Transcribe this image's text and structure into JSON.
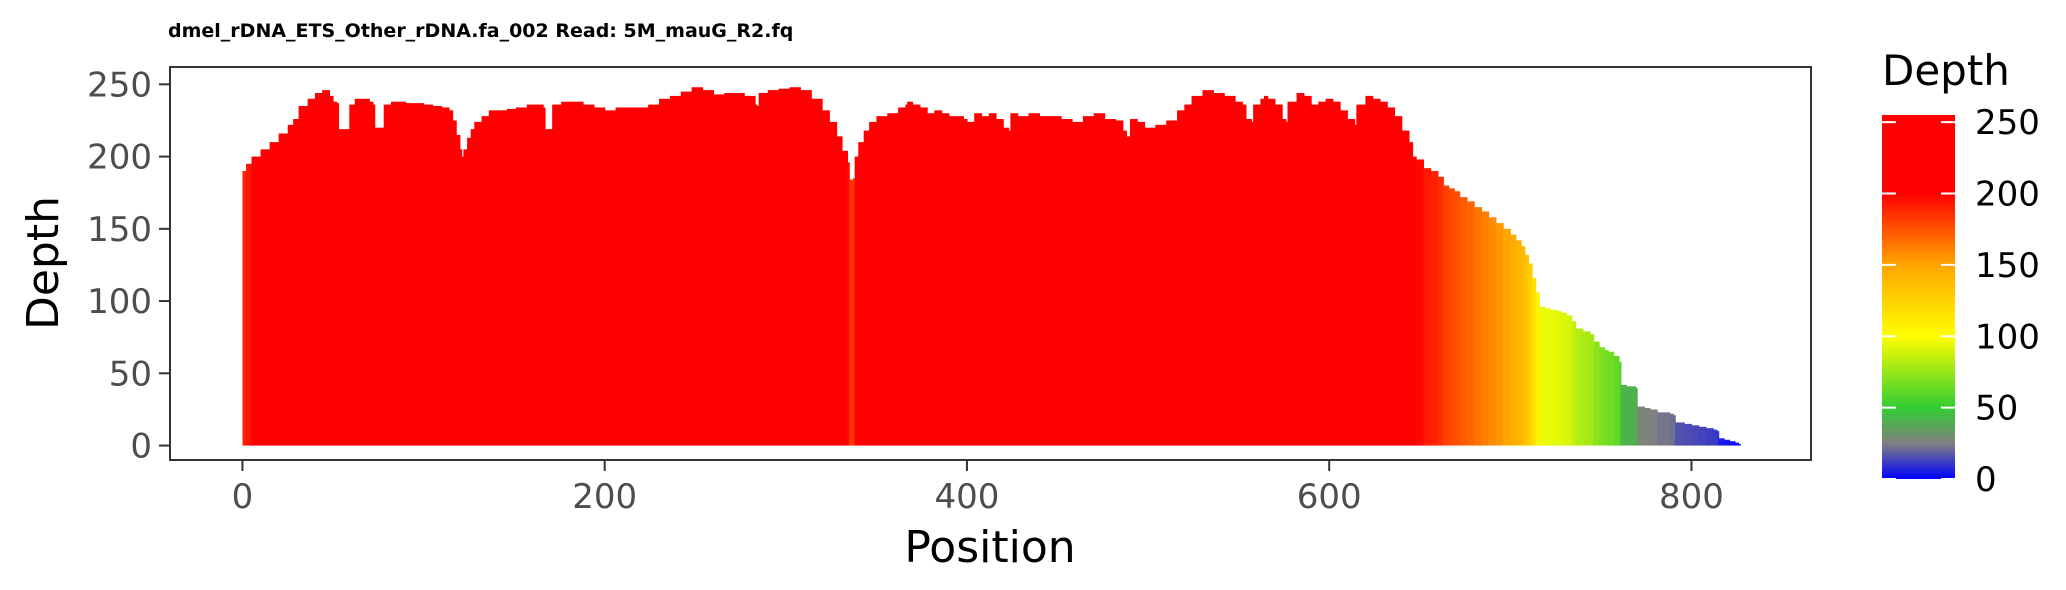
{
  "chart_data": {
    "type": "area",
    "title": "dmel_rDNA_ETS_Other_rDNA.fa_002 Read: 5M_mauG_R2.fq",
    "xlabel": "Position",
    "ylabel": "Depth",
    "xlim": [
      -40,
      866
    ],
    "ylim": [
      -10,
      262
    ],
    "x_ticks": [
      0,
      200,
      400,
      600,
      800
    ],
    "y_ticks": [
      0,
      50,
      100,
      150,
      200,
      250
    ],
    "grid": false,
    "legend": {
      "title": "Depth",
      "placement": "right",
      "type": "colorbar",
      "ticks": [
        0,
        50,
        100,
        150,
        200,
        250
      ],
      "range": [
        0,
        255
      ],
      "color_stops": [
        {
          "value": 0,
          "color": "#0000ff"
        },
        {
          "value": 25,
          "color": "#808080"
        },
        {
          "value": 50,
          "color": "#32cd32"
        },
        {
          "value": 100,
          "color": "#ffff00"
        },
        {
          "value": 150,
          "color": "#ffa500"
        },
        {
          "value": 200,
          "color": "#ff0000"
        },
        {
          "value": 255,
          "color": "#ff0000"
        }
      ]
    },
    "series": [
      {
        "points": [
          [
            0,
            190
          ],
          [
            2,
            195
          ],
          [
            5,
            200
          ],
          [
            10,
            205
          ],
          [
            15,
            210
          ],
          [
            20,
            216
          ],
          [
            25,
            222
          ],
          [
            28,
            226
          ],
          [
            30,
            226
          ],
          [
            31,
            235
          ],
          [
            35,
            235
          ],
          [
            36,
            240
          ],
          [
            40,
            244
          ],
          [
            44,
            246
          ],
          [
            48,
            242
          ],
          [
            50,
            238
          ],
          [
            52,
            237
          ],
          [
            53,
            219
          ],
          [
            58,
            219
          ],
          [
            59,
            236
          ],
          [
            62,
            240
          ],
          [
            66,
            240
          ],
          [
            70,
            238
          ],
          [
            72,
            236
          ],
          [
            73,
            220
          ],
          [
            77,
            220
          ],
          [
            78,
            236
          ],
          [
            82,
            238
          ],
          [
            86,
            238
          ],
          [
            90,
            237
          ],
          [
            95,
            237
          ],
          [
            100,
            236
          ],
          [
            105,
            235
          ],
          [
            110,
            234
          ],
          [
            114,
            232
          ],
          [
            116,
            225
          ],
          [
            118,
            215
          ],
          [
            120,
            205
          ],
          [
            121,
            200
          ],
          [
            122,
            205
          ],
          [
            124,
            213
          ],
          [
            126,
            219
          ],
          [
            128,
            224
          ],
          [
            132,
            228
          ],
          [
            136,
            232
          ],
          [
            141,
            232
          ],
          [
            146,
            233
          ],
          [
            151,
            234
          ],
          [
            157,
            236
          ],
          [
            162,
            236
          ],
          [
            166,
            234
          ],
          [
            167,
            219
          ],
          [
            170,
            219
          ],
          [
            171,
            236
          ],
          [
            176,
            238
          ],
          [
            182,
            238
          ],
          [
            188,
            236
          ],
          [
            194,
            234
          ],
          [
            200,
            232
          ],
          [
            206,
            234
          ],
          [
            212,
            234
          ],
          [
            218,
            234
          ],
          [
            224,
            236
          ],
          [
            230,
            240
          ],
          [
            236,
            242
          ],
          [
            242,
            245
          ],
          [
            248,
            248
          ],
          [
            254,
            246
          ],
          [
            260,
            243
          ],
          [
            266,
            244
          ],
          [
            272,
            244
          ],
          [
            277,
            242
          ],
          [
            283,
            236
          ],
          [
            284,
            235
          ],
          [
            285,
            244
          ],
          [
            290,
            246
          ],
          [
            296,
            247
          ],
          [
            302,
            248
          ],
          [
            308,
            246
          ],
          [
            314,
            240
          ],
          [
            320,
            232
          ],
          [
            324,
            224
          ],
          [
            328,
            214
          ],
          [
            331,
            204
          ],
          [
            334,
            196
          ],
          [
            335,
            184
          ],
          [
            337,
            185
          ],
          [
            338,
            200
          ],
          [
            340,
            210
          ],
          [
            343,
            218
          ],
          [
            346,
            224
          ],
          [
            350,
            228
          ],
          [
            356,
            230
          ],
          [
            362,
            234
          ],
          [
            366,
            236
          ],
          [
            367,
            238
          ],
          [
            370,
            236
          ],
          [
            374,
            234
          ],
          [
            378,
            230
          ],
          [
            382,
            232
          ],
          [
            386,
            230
          ],
          [
            390,
            228
          ],
          [
            394,
            228
          ],
          [
            398,
            226
          ],
          [
            400,
            224
          ],
          [
            404,
            230
          ],
          [
            408,
            228
          ],
          [
            412,
            230
          ],
          [
            416,
            226
          ],
          [
            420,
            220
          ],
          [
            423,
            218
          ],
          [
            424,
            230
          ],
          [
            428,
            228
          ],
          [
            434,
            230
          ],
          [
            440,
            228
          ],
          [
            446,
            228
          ],
          [
            452,
            226
          ],
          [
            458,
            224
          ],
          [
            464,
            228
          ],
          [
            470,
            230
          ],
          [
            476,
            226
          ],
          [
            482,
            225
          ],
          [
            486,
            218
          ],
          [
            488,
            214
          ],
          [
            490,
            226
          ],
          [
            494,
            224
          ],
          [
            498,
            220
          ],
          [
            504,
            222
          ],
          [
            510,
            225
          ],
          [
            516,
            232
          ],
          [
            520,
            236
          ],
          [
            524,
            242
          ],
          [
            530,
            246
          ],
          [
            536,
            244
          ],
          [
            542,
            242
          ],
          [
            548,
            238
          ],
          [
            552,
            236
          ],
          [
            554,
            226
          ],
          [
            557,
            224
          ],
          [
            558,
            236
          ],
          [
            562,
            240
          ],
          [
            564,
            242
          ],
          [
            566,
            240
          ],
          [
            570,
            236
          ],
          [
            574,
            226
          ],
          [
            576,
            224
          ],
          [
            577,
            238
          ],
          [
            582,
            244
          ],
          [
            586,
            242
          ],
          [
            590,
            236
          ],
          [
            594,
            238
          ],
          [
            598,
            240
          ],
          [
            602,
            238
          ],
          [
            606,
            232
          ],
          [
            610,
            226
          ],
          [
            614,
            222
          ],
          [
            615,
            236
          ],
          [
            620,
            242
          ],
          [
            624,
            240
          ],
          [
            628,
            238
          ],
          [
            632,
            234
          ],
          [
            636,
            228
          ],
          [
            640,
            218
          ],
          [
            644,
            210
          ],
          [
            646,
            200
          ],
          [
            648,
            198
          ],
          [
            652,
            192
          ],
          [
            656,
            190
          ],
          [
            660,
            186
          ],
          [
            663,
            180
          ],
          [
            666,
            178
          ],
          [
            669,
            176
          ],
          [
            672,
            172
          ],
          [
            676,
            169
          ],
          [
            680,
            165
          ],
          [
            684,
            162
          ],
          [
            688,
            158
          ],
          [
            692,
            154
          ],
          [
            696,
            150
          ],
          [
            700,
            146
          ],
          [
            703,
            142
          ],
          [
            706,
            138
          ],
          [
            708,
            132
          ],
          [
            710,
            126
          ],
          [
            712,
            116
          ],
          [
            714,
            106
          ],
          [
            716,
            96
          ],
          [
            719,
            95
          ],
          [
            722,
            94
          ],
          [
            726,
            93
          ],
          [
            728,
            92
          ],
          [
            731,
            90
          ],
          [
            734,
            86
          ],
          [
            736,
            81
          ],
          [
            740,
            79
          ],
          [
            744,
            77
          ],
          [
            746,
            72
          ],
          [
            749,
            68
          ],
          [
            752,
            66
          ],
          [
            754,
            65
          ],
          [
            757,
            62
          ],
          [
            760,
            58
          ],
          [
            761,
            42
          ],
          [
            764,
            41
          ],
          [
            769,
            40
          ],
          [
            770,
            27
          ],
          [
            774,
            26
          ],
          [
            777,
            25
          ],
          [
            781,
            23
          ],
          [
            785,
            23
          ],
          [
            788,
            22
          ],
          [
            790,
            21
          ],
          [
            791,
            16
          ],
          [
            796,
            15
          ],
          [
            800,
            14
          ],
          [
            804,
            13
          ],
          [
            808,
            12
          ],
          [
            812,
            11
          ],
          [
            814,
            10
          ],
          [
            815,
            5
          ],
          [
            818,
            4
          ],
          [
            821,
            3
          ],
          [
            824,
            2
          ],
          [
            826,
            1
          ]
        ]
      }
    ]
  }
}
